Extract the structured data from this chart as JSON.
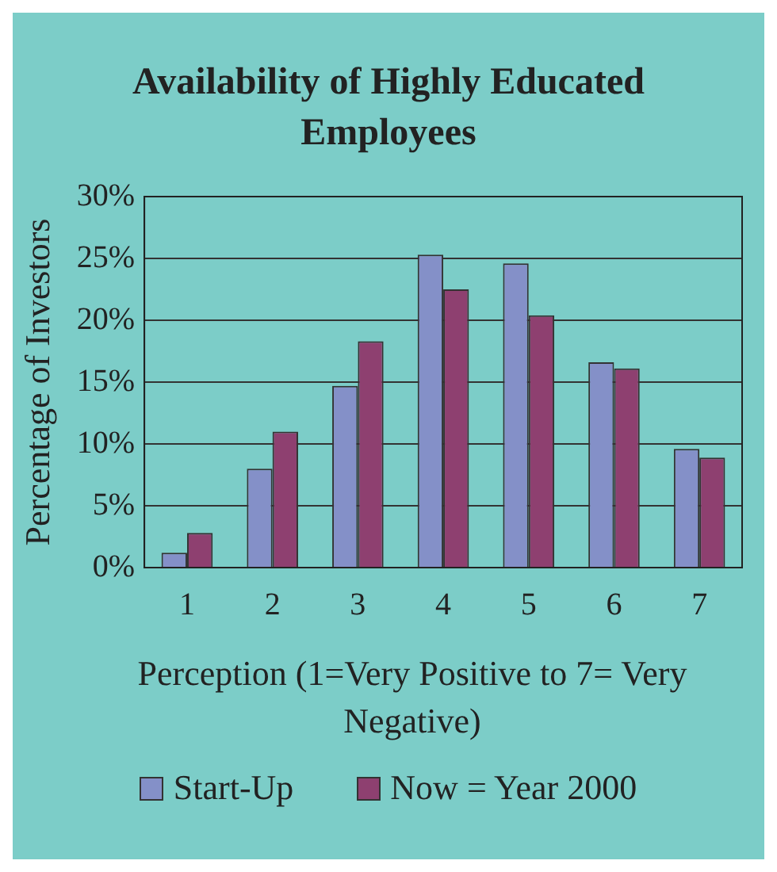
{
  "chart_data": {
    "type": "bar",
    "title": "Availability of Highly Educated Employees",
    "xlabel": "Perception (1=Very Positive to 7= Very Negative)",
    "ylabel": "Percentage of Investors",
    "categories": [
      "1",
      "2",
      "3",
      "4",
      "5",
      "6",
      "7"
    ],
    "series": [
      {
        "name": "Start-Up",
        "color": "#8490c8",
        "values": [
          1.2,
          8.0,
          14.7,
          25.3,
          24.6,
          16.6,
          9.6
        ]
      },
      {
        "name": "Now = Year 2000",
        "color": "#8e4070",
        "values": [
          2.8,
          11.0,
          18.3,
          22.5,
          20.4,
          16.1,
          8.9
        ]
      }
    ],
    "ylim": [
      0,
      30
    ],
    "yticks": [
      {
        "value": 0,
        "label": "0%"
      },
      {
        "value": 5,
        "label": "5%"
      },
      {
        "value": 10,
        "label": "10%"
      },
      {
        "value": 15,
        "label": "15%"
      },
      {
        "value": 20,
        "label": "20%"
      },
      {
        "value": 25,
        "label": "25%"
      },
      {
        "value": 30,
        "label": "30%"
      }
    ],
    "grid": "y",
    "legend": "bottom"
  }
}
